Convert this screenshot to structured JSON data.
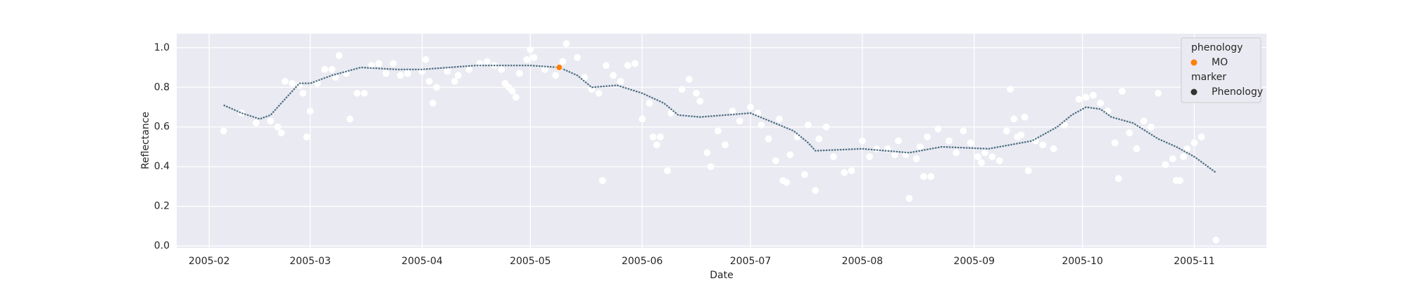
{
  "chart_data": {
    "type": "scatter",
    "x_label": "Date",
    "y_label": "Reflectance",
    "xlim": [
      "2005-01-23",
      "2005-11-21"
    ],
    "xticks": [
      "2005-02",
      "2005-03",
      "2005-04",
      "2005-05",
      "2005-06",
      "2005-07",
      "2005-08",
      "2005-09",
      "2005-10",
      "2005-11"
    ],
    "ylim": [
      -0.01,
      1.07
    ],
    "yticks": [
      {
        "value": 0,
        "label": "0.0"
      },
      0.2,
      0.4,
      0.6,
      0.8,
      {
        "value": 1,
        "label": "1.0"
      }
    ],
    "grid": true,
    "series": [
      {
        "type": "scatter",
        "color": "#ffffff",
        "x": [
          "2005-02-05",
          "2005-02-10",
          "2005-02-14",
          "2005-02-18",
          "2005-02-20",
          "2005-02-21",
          "2005-02-22",
          "2005-02-24",
          "2005-02-26",
          "2005-02-27",
          "2005-02-28",
          "2005-03-01",
          "2005-03-03",
          "2005-03-05",
          "2005-03-07",
          "2005-03-08",
          "2005-03-09",
          "2005-03-11",
          "2005-03-12",
          "2005-03-14",
          "2005-03-16",
          "2005-03-18",
          "2005-03-20",
          "2005-03-22",
          "2005-03-24",
          "2005-03-26",
          "2005-03-28",
          "2005-04-01",
          "2005-04-02",
          "2005-04-03",
          "2005-04-04",
          "2005-04-05",
          "2005-04-08",
          "2005-04-10",
          "2005-04-11",
          "2005-04-14",
          "2005-04-17",
          "2005-04-19",
          "2005-04-21",
          "2005-04-23",
          "2005-04-24",
          "2005-04-25",
          "2005-04-26",
          "2005-04-27",
          "2005-04-28",
          "2005-04-30",
          "2005-05-01",
          "2005-05-02",
          "2005-05-05",
          "2005-05-08",
          "2005-05-10",
          "2005-05-11",
          "2005-05-14",
          "2005-05-16",
          "2005-05-18",
          "2005-05-20",
          "2005-05-21",
          "2005-05-22",
          "2005-05-24",
          "2005-05-26",
          "2005-05-28",
          "2005-05-30",
          "2005-06-01",
          "2005-06-03",
          "2005-06-04",
          "2005-06-05",
          "2005-06-06",
          "2005-06-08",
          "2005-06-09",
          "2005-06-12",
          "2005-06-14",
          "2005-06-16",
          "2005-06-17",
          "2005-06-19",
          "2005-06-20",
          "2005-06-22",
          "2005-06-24",
          "2005-06-26",
          "2005-06-28",
          "2005-07-01",
          "2005-07-03",
          "2005-07-04",
          "2005-07-06",
          "2005-07-08",
          "2005-07-09",
          "2005-07-10",
          "2005-07-11",
          "2005-07-12",
          "2005-07-14",
          "2005-07-16",
          "2005-07-17",
          "2005-07-19",
          "2005-07-20",
          "2005-07-22",
          "2005-07-24",
          "2005-07-27",
          "2005-07-29",
          "2005-08-01",
          "2005-08-03",
          "2005-08-05",
          "2005-08-08",
          "2005-08-10",
          "2005-08-11",
          "2005-08-13",
          "2005-08-14",
          "2005-08-16",
          "2005-08-17",
          "2005-08-18",
          "2005-08-19",
          "2005-08-20",
          "2005-08-22",
          "2005-08-25",
          "2005-08-27",
          "2005-08-29",
          "2005-08-31",
          "2005-09-02",
          "2005-09-03",
          "2005-09-04",
          "2005-09-06",
          "2005-09-08",
          "2005-09-10",
          "2005-09-11",
          "2005-09-12",
          "2005-09-13",
          "2005-09-14",
          "2005-09-15",
          "2005-09-16",
          "2005-09-18",
          "2005-09-20",
          "2005-09-23",
          "2005-09-26",
          "2005-09-30",
          "2005-10-02",
          "2005-10-04",
          "2005-10-06",
          "2005-10-08",
          "2005-10-10",
          "2005-10-11",
          "2005-10-12",
          "2005-10-14",
          "2005-10-16",
          "2005-10-18",
          "2005-10-20",
          "2005-10-22",
          "2005-10-24",
          "2005-10-26",
          "2005-10-27",
          "2005-10-28",
          "2005-10-29",
          "2005-10-30",
          "2005-11-01",
          "2005-11-03",
          "2005-11-07"
        ],
        "values": [
          0.58,
          0.67,
          0.62,
          0.63,
          0.6,
          0.57,
          0.83,
          0.82,
          0.81,
          0.77,
          0.55,
          0.68,
          0.82,
          0.89,
          0.89,
          0.85,
          0.96,
          0.87,
          0.64,
          0.77,
          0.77,
          0.91,
          0.92,
          0.87,
          0.92,
          0.86,
          0.87,
          0.88,
          0.94,
          0.83,
          0.72,
          0.8,
          0.88,
          0.83,
          0.86,
          0.89,
          0.92,
          0.93,
          0.91,
          0.89,
          0.82,
          0.8,
          0.78,
          0.75,
          0.87,
          0.94,
          0.99,
          0.95,
          0.89,
          0.86,
          0.93,
          1.02,
          0.95,
          0.85,
          0.79,
          0.77,
          0.33,
          0.91,
          0.86,
          0.83,
          0.91,
          0.92,
          0.64,
          0.72,
          0.55,
          0.51,
          0.55,
          0.38,
          0.67,
          0.79,
          0.84,
          0.77,
          0.73,
          0.47,
          0.4,
          0.58,
          0.51,
          0.68,
          0.63,
          0.7,
          0.67,
          0.61,
          0.54,
          0.43,
          0.64,
          0.33,
          0.32,
          0.46,
          0.55,
          0.36,
          0.61,
          0.28,
          0.54,
          0.6,
          0.45,
          0.37,
          0.38,
          0.53,
          0.45,
          0.49,
          0.49,
          0.46,
          0.53,
          0.46,
          0.24,
          0.44,
          0.5,
          0.35,
          0.55,
          0.35,
          0.59,
          0.53,
          0.47,
          0.58,
          0.52,
          0.45,
          0.42,
          0.47,
          0.45,
          0.43,
          0.58,
          0.79,
          0.64,
          0.55,
          0.56,
          0.65,
          0.38,
          0.53,
          0.51,
          0.49,
          0.61,
          0.74,
          0.75,
          0.76,
          0.72,
          0.68,
          0.52,
          0.34,
          0.78,
          0.57,
          0.49,
          0.63,
          0.6,
          0.77,
          0.41,
          0.44,
          0.33,
          0.33,
          0.45,
          0.49,
          0.52,
          0.55,
          0.03
        ]
      },
      {
        "type": "line",
        "color": "#4a6d80",
        "x": [
          "2005-02-05",
          "2005-02-10",
          "2005-02-15",
          "2005-02-18",
          "2005-02-21",
          "2005-02-26",
          "2005-03-01",
          "2005-03-07",
          "2005-03-15",
          "2005-03-25",
          "2005-04-01",
          "2005-04-16",
          "2005-05-01",
          "2005-05-09",
          "2005-05-14",
          "2005-05-18",
          "2005-05-25",
          "2005-06-01",
          "2005-06-07",
          "2005-06-11",
          "2005-06-17",
          "2005-07-01",
          "2005-07-09",
          "2005-07-13",
          "2005-07-17",
          "2005-07-19",
          "2005-08-01",
          "2005-08-14",
          "2005-08-23",
          "2005-09-05",
          "2005-09-17",
          "2005-09-24",
          "2005-09-28",
          "2005-10-02",
          "2005-10-06",
          "2005-10-09",
          "2005-10-15",
          "2005-10-22",
          "2005-10-27",
          "2005-11-01",
          "2005-11-07"
        ],
        "values": [
          0.71,
          0.67,
          0.64,
          0.66,
          0.72,
          0.82,
          0.82,
          0.86,
          0.9,
          0.89,
          0.89,
          0.91,
          0.91,
          0.9,
          0.86,
          0.8,
          0.81,
          0.77,
          0.72,
          0.66,
          0.65,
          0.67,
          0.61,
          0.58,
          0.52,
          0.48,
          0.49,
          0.47,
          0.5,
          0.49,
          0.53,
          0.6,
          0.66,
          0.7,
          0.69,
          0.65,
          0.62,
          0.54,
          0.5,
          0.45,
          0.37
        ]
      },
      {
        "type": "scatter",
        "name": "MO",
        "color": "#ff7f0e",
        "x": [
          "2005-05-09"
        ],
        "values": [
          0.9
        ]
      }
    ],
    "legend": {
      "corner": "upper right",
      "hue_title": "phenology",
      "style_title": "marker",
      "style_items": [
        {
          "label": "Phenology",
          "color": "#333333"
        }
      ]
    }
  }
}
